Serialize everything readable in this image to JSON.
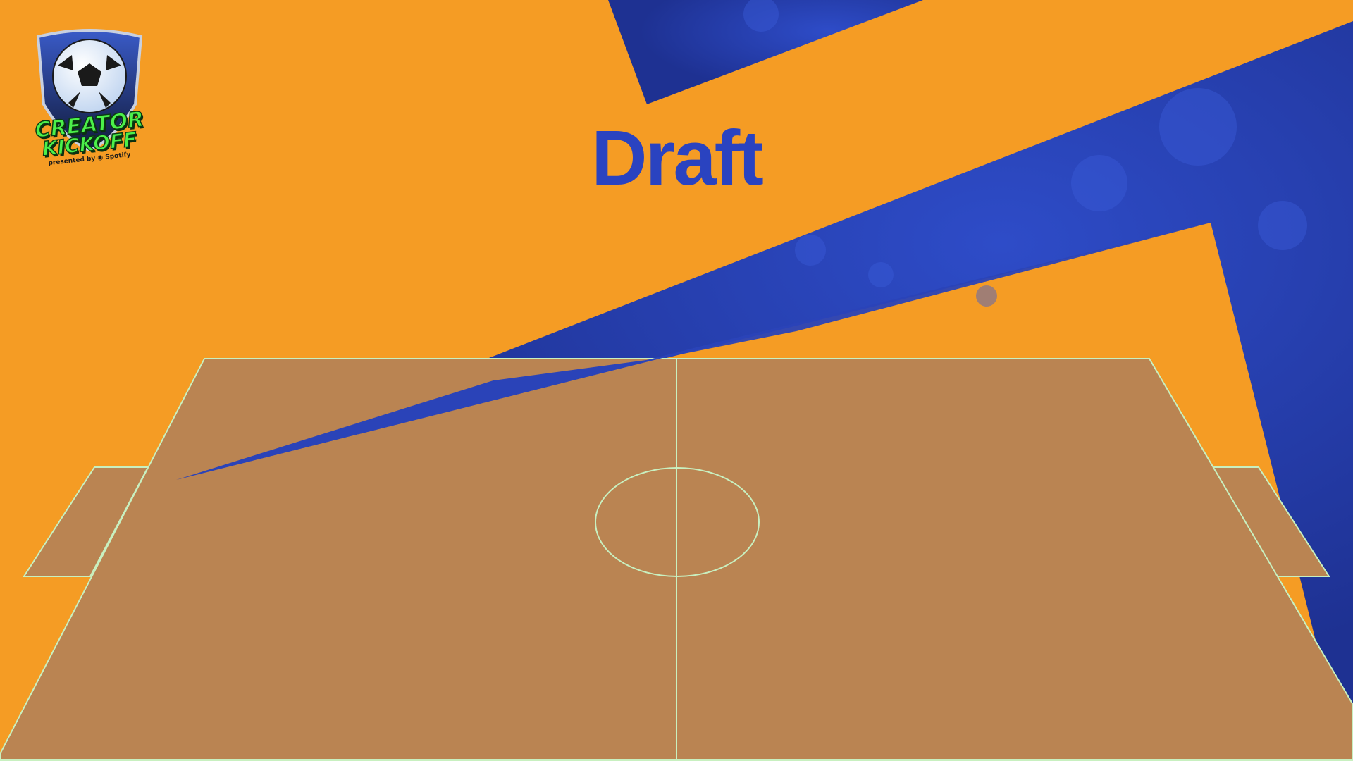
{
  "title": "Draft",
  "logo": {
    "line1": "CREATOR",
    "line2": "KICKOFF",
    "presented_by": "presented by ◉ Spotify"
  },
  "colors": {
    "background": "#F59C24",
    "accent_blue": "#2A43C0",
    "pitch_fill": "#BA8452",
    "pitch_lines": "#C8F0C0"
  }
}
